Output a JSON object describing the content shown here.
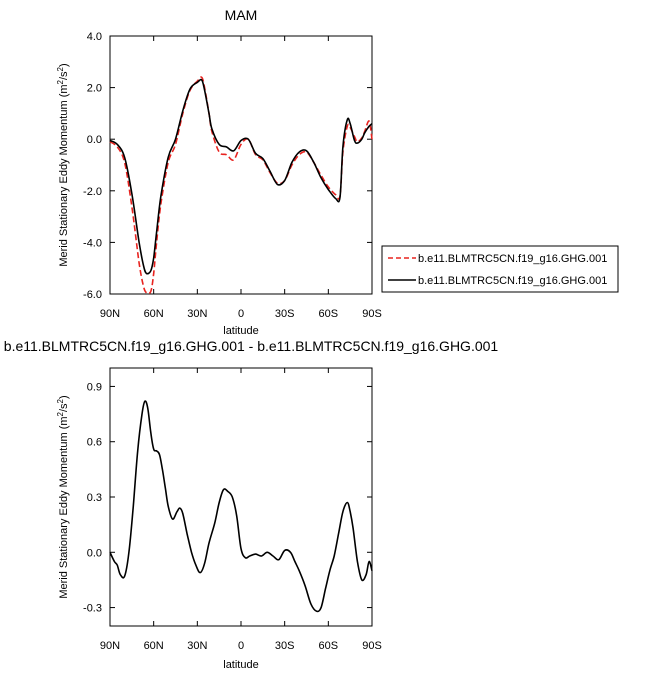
{
  "chart_data": [
    {
      "type": "line",
      "title": "MAM",
      "xlabel": "latitude",
      "ylabel": "Merid Stationary Eddy Momentum (m²/s²)",
      "ylabel_main": "Merid Stationary Eddy Momentum (m",
      "ylabel_sup1": "2",
      "ylabel_mid": "/s",
      "ylabel_sup2": "2",
      "ylabel_end": ")",
      "xlim": [
        90,
        -90
      ],
      "ylim": [
        -6.0,
        4.0
      ],
      "x_ticks": [
        90,
        60,
        30,
        0,
        -30,
        -60,
        -90
      ],
      "x_tick_labels": [
        "90N",
        "60N",
        "30N",
        "0",
        "30S",
        "60S",
        "90S"
      ],
      "y_ticks": [
        -6.0,
        -4.0,
        -2.0,
        0.0,
        2.0,
        4.0
      ],
      "y_tick_labels": [
        "-6.0",
        "-4.0",
        "-2.0",
        "0.0",
        "2.0",
        "4.0"
      ],
      "legend_position": "outside-right",
      "series": [
        {
          "name": "b.e11.BLMTRC5CN.f19_g16.GHG.001",
          "color": "#e8231f",
          "dash": "dashed",
          "x": [
            90,
            85,
            80,
            75,
            70,
            67,
            65,
            62,
            60,
            58,
            55,
            50,
            45,
            40,
            35,
            30,
            27,
            25,
            22,
            20,
            15,
            10,
            5,
            0,
            -5,
            -10,
            -15,
            -20,
            -25,
            -30,
            -35,
            -40,
            -45,
            -50,
            -55,
            -60,
            -65,
            -68,
            -70,
            -73,
            -75,
            -78,
            -80,
            -83,
            -85,
            -88,
            -90
          ],
          "y": [
            -0.1,
            -0.3,
            -0.9,
            -2.6,
            -4.8,
            -5.7,
            -5.95,
            -5.9,
            -5.2,
            -4.0,
            -2.5,
            -0.9,
            -0.2,
            1.0,
            1.9,
            2.25,
            2.4,
            2.0,
            1.0,
            0.3,
            -0.5,
            -0.6,
            -0.8,
            -0.2,
            0.0,
            -0.6,
            -0.8,
            -1.3,
            -1.7,
            -1.6,
            -1.0,
            -0.6,
            -0.5,
            -0.9,
            -1.4,
            -1.85,
            -2.15,
            -2.2,
            -0.5,
            0.5,
            0.45,
            0.1,
            -0.1,
            0.05,
            0.3,
            0.7,
            0.0
          ]
        },
        {
          "name": "b.e11.BLMTRC5CN.f19_g16.GHG.001",
          "color": "#000000",
          "dash": "solid",
          "x": [
            90,
            85,
            80,
            75,
            70,
            67,
            65,
            62,
            60,
            58,
            55,
            50,
            45,
            40,
            35,
            30,
            27,
            25,
            22,
            20,
            15,
            10,
            5,
            0,
            -5,
            -10,
            -15,
            -20,
            -25,
            -30,
            -35,
            -40,
            -45,
            -50,
            -55,
            -60,
            -65,
            -68,
            -70,
            -73,
            -75,
            -78,
            -80,
            -83,
            -85,
            -88,
            -90
          ],
          "y": [
            -0.05,
            -0.2,
            -0.7,
            -2.1,
            -4.0,
            -4.9,
            -5.2,
            -5.1,
            -4.6,
            -3.6,
            -2.2,
            -0.7,
            0.0,
            1.1,
            1.95,
            2.2,
            2.3,
            1.9,
            1.0,
            0.4,
            -0.2,
            -0.3,
            -0.45,
            -0.05,
            0.0,
            -0.55,
            -0.75,
            -1.25,
            -1.75,
            -1.6,
            -0.9,
            -0.5,
            -0.45,
            -0.9,
            -1.5,
            -1.95,
            -2.3,
            -2.25,
            -0.3,
            0.75,
            0.6,
            -0.05,
            -0.15,
            0.0,
            0.25,
            0.5,
            0.6
          ]
        }
      ]
    },
    {
      "type": "line",
      "title": "b.e11.BLMTRC5CN.f19_g16.GHG.001 - b.e11.BLMTRC5CN.f19_g16.GHG.001",
      "xlabel": "latitude",
      "ylabel": "Merid Stationary Eddy Momentum (m²/s²)",
      "ylabel_main": "Merid Stationary Eddy Momentum (m",
      "ylabel_sup1": "2",
      "ylabel_mid": "/s",
      "ylabel_sup2": "2",
      "ylabel_end": ")",
      "xlim": [
        90,
        -90
      ],
      "ylim": [
        -0.4,
        1.0
      ],
      "x_ticks": [
        90,
        60,
        30,
        0,
        -30,
        -60,
        -90
      ],
      "x_tick_labels": [
        "90N",
        "60N",
        "30N",
        "0",
        "30S",
        "60S",
        "90S"
      ],
      "y_ticks": [
        -0.3,
        0.0,
        0.3,
        0.6,
        0.9
      ],
      "y_tick_labels": [
        "-0.3",
        "0.0",
        "0.3",
        "0.6",
        "0.9"
      ],
      "series": [
        {
          "color": "#000000",
          "dash": "solid",
          "x": [
            90,
            87,
            85,
            83,
            80,
            77,
            74,
            71,
            68,
            66,
            64,
            62,
            60,
            58,
            56,
            54,
            52,
            50,
            47,
            44,
            42,
            40,
            37,
            34,
            31,
            28,
            25,
            22,
            18,
            15,
            12,
            9,
            6,
            3,
            0,
            -3,
            -6,
            -10,
            -14,
            -18,
            -22,
            -26,
            -30,
            -34,
            -37,
            -40,
            -44,
            -48,
            -52,
            -55,
            -58,
            -61,
            -64,
            -67,
            -70,
            -73,
            -75,
            -77,
            -80,
            -83,
            -86,
            -88,
            -90
          ],
          "y": [
            0.0,
            -0.05,
            -0.07,
            -0.12,
            -0.13,
            0.0,
            0.25,
            0.55,
            0.75,
            0.82,
            0.78,
            0.65,
            0.56,
            0.55,
            0.53,
            0.45,
            0.35,
            0.25,
            0.18,
            0.22,
            0.24,
            0.21,
            0.1,
            -0.0,
            -0.07,
            -0.11,
            -0.06,
            0.05,
            0.16,
            0.27,
            0.34,
            0.33,
            0.3,
            0.2,
            0.02,
            -0.03,
            -0.02,
            -0.01,
            -0.02,
            0.0,
            -0.02,
            -0.04,
            0.01,
            0.0,
            -0.05,
            -0.1,
            -0.18,
            -0.28,
            -0.32,
            -0.3,
            -0.2,
            -0.1,
            -0.02,
            0.1,
            0.22,
            0.27,
            0.22,
            0.13,
            -0.05,
            -0.15,
            -0.12,
            -0.05,
            -0.1
          ]
        }
      ]
    }
  ]
}
